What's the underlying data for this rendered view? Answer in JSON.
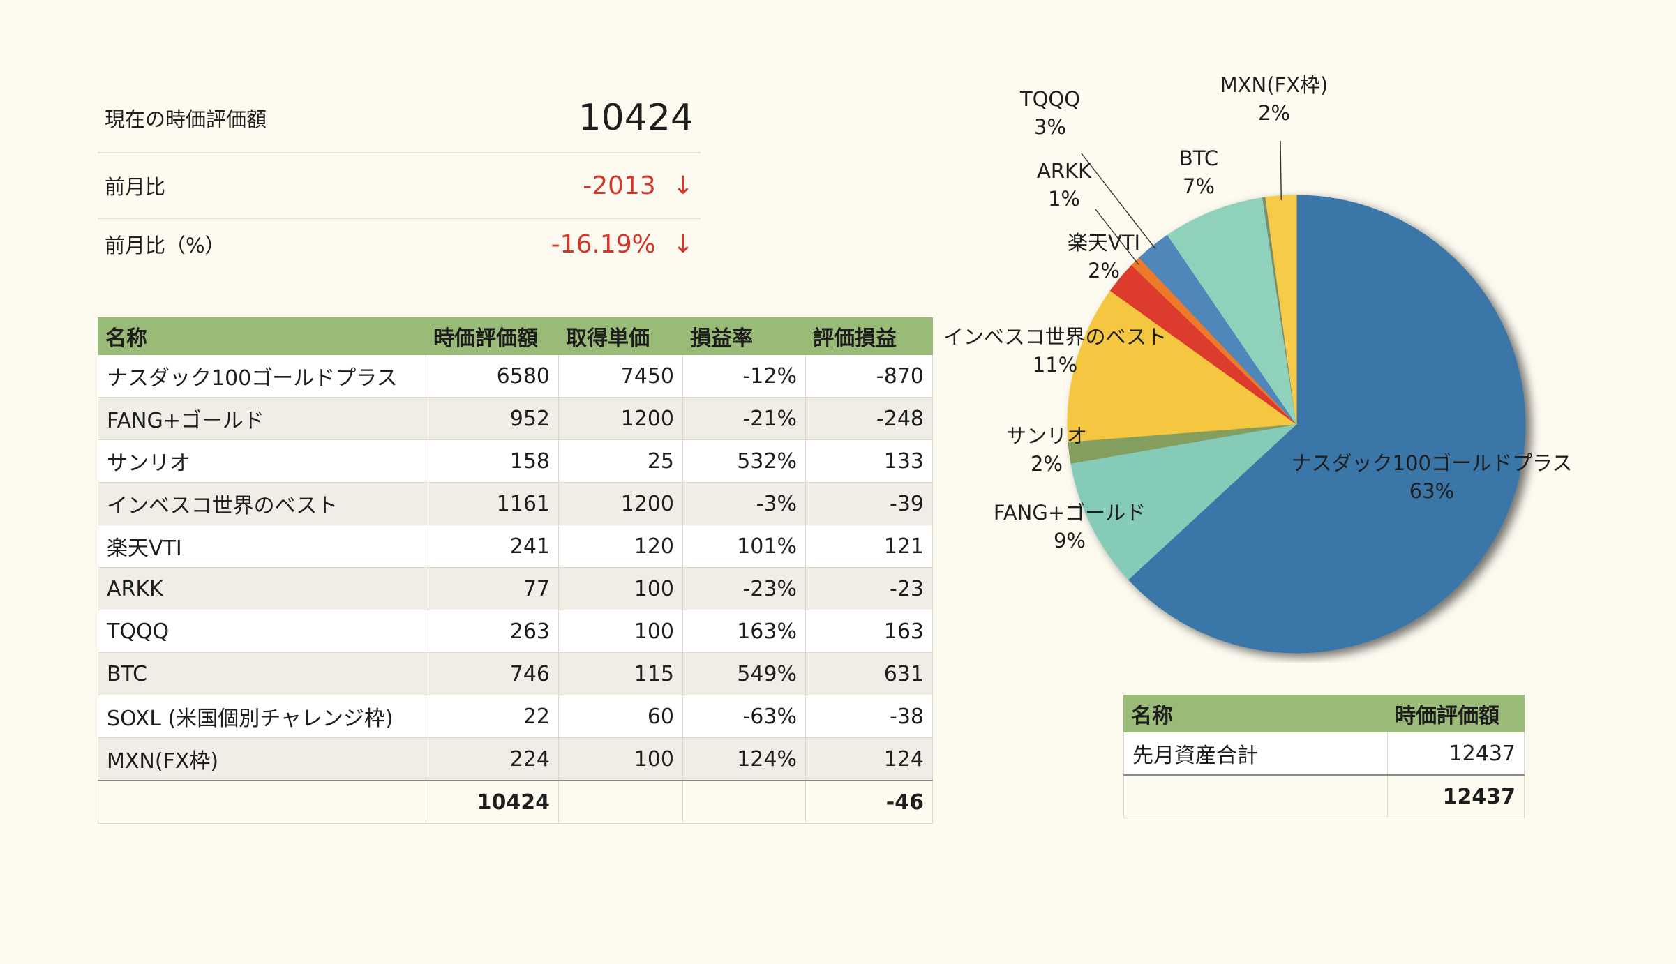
{
  "summary": {
    "current_label": "現在の時価評価額",
    "current_value": "10424",
    "mom_label": "前月比",
    "mom_value": "-2013",
    "mom_pct_label": "前月比（%）",
    "mom_pct_value": "-16.19%",
    "down_arrow": "↓"
  },
  "holdings": {
    "headers": [
      "名称",
      "時価評価額",
      "取得単価",
      "損益率",
      "評価損益"
    ],
    "rows": [
      [
        "ナスダック100ゴールドプラス",
        "6580",
        "7450",
        "-12%",
        "-870"
      ],
      [
        "FANG+ゴールド",
        "952",
        "1200",
        "-21%",
        "-248"
      ],
      [
        "サンリオ",
        "158",
        "25",
        "532%",
        "133"
      ],
      [
        "インベスコ世界のベスト",
        "1161",
        "1200",
        "-3%",
        "-39"
      ],
      [
        "楽天VTI",
        "241",
        "120",
        "101%",
        "121"
      ],
      [
        "ARKK",
        "77",
        "100",
        "-23%",
        "-23"
      ],
      [
        "TQQQ",
        "263",
        "100",
        "163%",
        "163"
      ],
      [
        "BTC",
        "746",
        "115",
        "549%",
        "631"
      ],
      [
        "SOXL (米国個別チャレンジ枠)",
        "22",
        "60",
        "-63%",
        "-38"
      ],
      [
        "MXN(FX枠)",
        "224",
        "100",
        "124%",
        "124"
      ]
    ],
    "total_value": "10424",
    "total_pl": "-46"
  },
  "last_month": {
    "headers": [
      "名称",
      "時価評価額"
    ],
    "row": [
      "先月資産合計",
      "12437"
    ],
    "total": "12437"
  },
  "chart_data": {
    "type": "pie",
    "title": "",
    "series": [
      {
        "name": "ナスダック100ゴールドプラス",
        "value": 6580,
        "pct_label": "63%",
        "color": "#3b76a8"
      },
      {
        "name": "FANG+ゴールド",
        "value": 952,
        "pct_label": "9%",
        "color": "#86cbb7"
      },
      {
        "name": "サンリオ",
        "value": 158,
        "pct_label": "2%",
        "color": "#839e5f"
      },
      {
        "name": "インベスコ世界のベスト",
        "value": 1161,
        "pct_label": "11%",
        "color": "#f5c640"
      },
      {
        "name": "楽天VTI",
        "value": 241,
        "pct_label": "2%",
        "color": "#dd3a2e"
      },
      {
        "name": "ARKK",
        "value": 77,
        "pct_label": "1%",
        "color": "#ec7a2a"
      },
      {
        "name": "TQQQ",
        "value": 263,
        "pct_label": "3%",
        "color": "#4f87ba"
      },
      {
        "name": "BTC",
        "value": 746,
        "pct_label": "7%",
        "color": "#90d1bc"
      },
      {
        "name": "SOXL (米国個別チャレンジ枠)",
        "value": 22,
        "pct_label": "",
        "color": "#7b8f6c"
      },
      {
        "name": "MXN(FX枠)",
        "value": 224,
        "pct_label": "2%",
        "color": "#f5cb4a"
      }
    ]
  }
}
